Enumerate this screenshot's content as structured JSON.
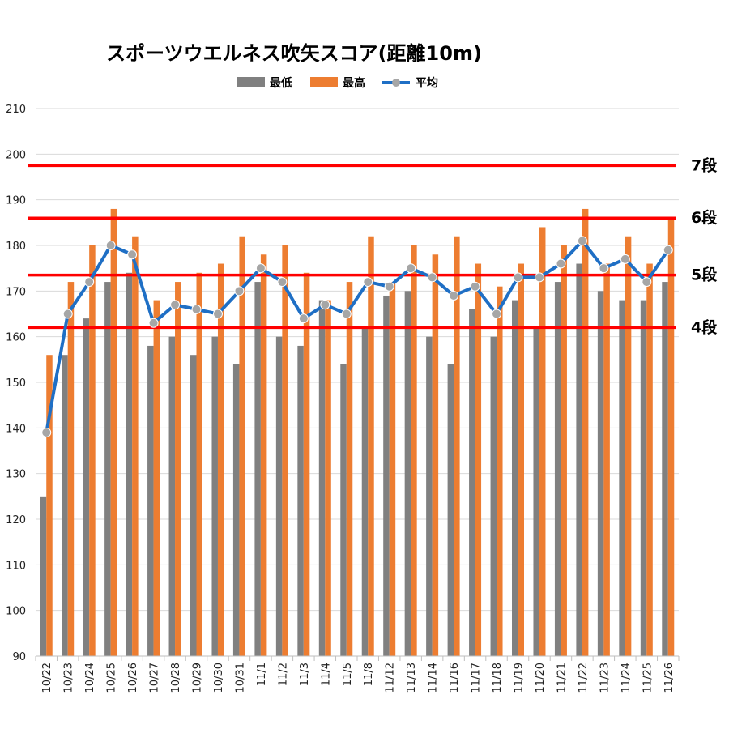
{
  "chart_data": {
    "type": "bar",
    "title": "スポーツウエルネス吹矢スコア(距離10m)",
    "xlabel": "",
    "ylabel": "",
    "ylim": [
      90,
      210
    ],
    "yticks": [
      90,
      100,
      110,
      120,
      130,
      140,
      150,
      160,
      170,
      180,
      190,
      200,
      210
    ],
    "grid": true,
    "legend": "top",
    "categories": [
      "10/22",
      "10/23",
      "10/24",
      "10/25",
      "10/26",
      "10/27",
      "10/28",
      "10/29",
      "10/30",
      "10/31",
      "11/1",
      "11/2",
      "11/3",
      "11/4",
      "11/5",
      "11/8",
      "11/12",
      "11/13",
      "11/14",
      "11/16",
      "11/17",
      "11/18",
      "11/19",
      "11/20",
      "11/21",
      "11/22",
      "11/23",
      "11/24",
      "11/25",
      "11/26"
    ],
    "series": [
      {
        "name": "最低",
        "kind": "bar",
        "color": "#808080",
        "values": [
          125,
          156,
          164,
          172,
          174,
          158,
          160,
          156,
          160,
          154,
          172,
          160,
          158,
          168,
          154,
          162,
          169,
          170,
          160,
          154,
          166,
          160,
          168,
          162,
          172,
          176,
          170,
          168,
          168,
          172
        ]
      },
      {
        "name": "最高",
        "kind": "bar",
        "color": "#ED7D31",
        "values": [
          156,
          172,
          180,
          188,
          182,
          168,
          172,
          174,
          176,
          182,
          178,
          180,
          174,
          168,
          172,
          182,
          172,
          180,
          178,
          182,
          176,
          171,
          176,
          184,
          180,
          188,
          176,
          182,
          176,
          186
        ]
      },
      {
        "name": "平均",
        "kind": "line",
        "color": "#1F6FC5",
        "marker_color": "#A6A6A6",
        "values": [
          139,
          165,
          172,
          180,
          178,
          163,
          167,
          166,
          165,
          170,
          175,
          172,
          164,
          167,
          165,
          172,
          171,
          175,
          173,
          169,
          171,
          165,
          173,
          173,
          176,
          181,
          175,
          177,
          172,
          179
        ]
      }
    ],
    "reference_lines": [
      {
        "label": "7段",
        "value": 197.5,
        "color": "#FF0000"
      },
      {
        "label": "6段",
        "value": 186,
        "color": "#FF0000"
      },
      {
        "label": "5段",
        "value": 173.5,
        "color": "#FF0000"
      },
      {
        "label": "4段",
        "value": 162,
        "color": "#FF0000"
      }
    ]
  }
}
